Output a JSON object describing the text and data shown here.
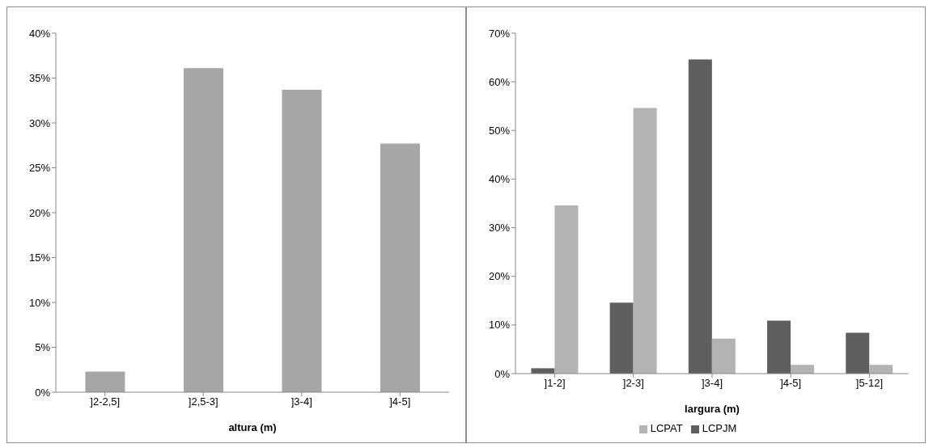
{
  "chart_data": [
    {
      "type": "bar",
      "xlabel": "altura (m)",
      "categories": [
        "]2-2,5]",
        "]2,5-3]",
        "]3-4]",
        "]4-5]"
      ],
      "series": [
        {
          "color": "#a6a6a6",
          "values": [
            2.3,
            36.1,
            33.7,
            27.7
          ]
        }
      ],
      "ylim": [
        0,
        40
      ],
      "yticks": [
        {
          "value": 0,
          "label": "0%"
        },
        {
          "value": 5,
          "label": "5%"
        },
        {
          "value": 10,
          "label": "10%"
        },
        {
          "value": 15,
          "label": "15%"
        },
        {
          "value": 20,
          "label": "20%"
        },
        {
          "value": 25,
          "label": "25%"
        },
        {
          "value": 30,
          "label": "30%"
        },
        {
          "value": 35,
          "label": "35%"
        },
        {
          "value": 40,
          "label": "40%"
        }
      ],
      "grid": false,
      "legend": false
    },
    {
      "type": "bar",
      "xlabel": "largura (m)",
      "categories": [
        "]1-2]",
        "]2-3]",
        "]3-4]",
        "]4-5]",
        "]5-12]"
      ],
      "series": [
        {
          "name": "LCPJM",
          "color": "#5f5f5f",
          "values": [
            1.1,
            14.6,
            64.6,
            10.9,
            8.4
          ]
        },
        {
          "name": "LCPAT",
          "color": "#b3b3b3",
          "values": [
            34.6,
            54.6,
            7.2,
            1.8,
            1.8
          ]
        }
      ],
      "ylim": [
        0,
        70
      ],
      "yticks": [
        {
          "value": 0,
          "label": "0%"
        },
        {
          "value": 10,
          "label": "10%"
        },
        {
          "value": 20,
          "label": "20%"
        },
        {
          "value": 30,
          "label": "30%"
        },
        {
          "value": 40,
          "label": "40%"
        },
        {
          "value": 50,
          "label": "50%"
        },
        {
          "value": 60,
          "label": "60%"
        },
        {
          "value": 70,
          "label": "70%"
        }
      ],
      "grid": false,
      "legend": "bottom"
    }
  ]
}
